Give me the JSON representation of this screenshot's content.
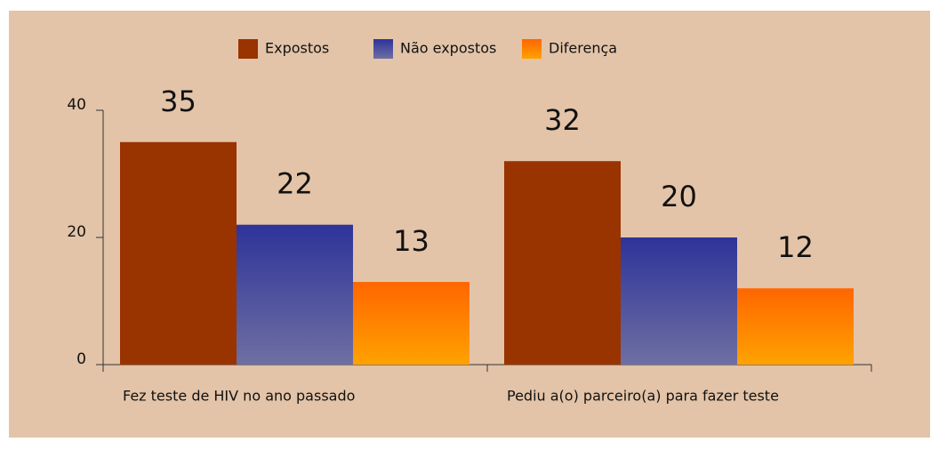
{
  "chart_data": {
    "type": "bar",
    "categories": [
      "Fez teste de HIV no ano passado",
      "Pediu a(o) parceiro(a) para fazer teste"
    ],
    "series": [
      {
        "name": "Expostos",
        "color": "#993300",
        "values": [
          35,
          32
        ]
      },
      {
        "name": "Não expostos",
        "color": "#2e3399",
        "values": [
          22,
          20
        ]
      },
      {
        "name": "Diferença",
        "color": "#ff6600",
        "values": [
          13,
          12
        ]
      }
    ],
    "ylim": [
      0,
      40
    ],
    "yticks": [
      0,
      20,
      40
    ],
    "legend": "top"
  }
}
